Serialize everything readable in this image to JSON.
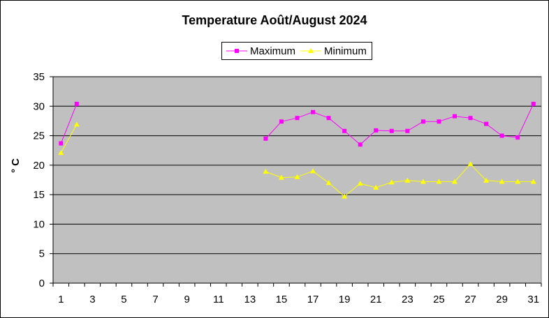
{
  "chart_data": {
    "type": "line",
    "title": "Temperature Août/August 2024",
    "xlabel": "",
    "ylabel": "° C",
    "x": [
      1,
      2,
      3,
      4,
      5,
      6,
      7,
      8,
      9,
      10,
      11,
      12,
      13,
      14,
      15,
      16,
      17,
      18,
      19,
      20,
      21,
      22,
      23,
      24,
      25,
      26,
      27,
      28,
      29,
      30,
      31
    ],
    "x_tick_labels": [
      "1",
      "3",
      "5",
      "7",
      "9",
      "11",
      "13",
      "15",
      "17",
      "19",
      "21",
      "23",
      "25",
      "27",
      "29",
      "31"
    ],
    "ylim": [
      0,
      35
    ],
    "y_ticks": [
      0,
      5,
      10,
      15,
      20,
      25,
      30,
      35
    ],
    "grid": "horizontal",
    "legend": "top-center",
    "plot_background": "#c0c0c0",
    "series": [
      {
        "name": "Maximum",
        "color": "#ff00ff",
        "marker": "square",
        "values": [
          23.7,
          30.4,
          null,
          null,
          null,
          null,
          null,
          null,
          null,
          null,
          null,
          null,
          null,
          24.5,
          27.4,
          28.0,
          29.0,
          28.0,
          25.8,
          23.5,
          25.9,
          25.8,
          25.8,
          27.4,
          27.4,
          28.3,
          28.0,
          27.0,
          25.0,
          24.7,
          30.4
        ]
      },
      {
        "name": "Minimum",
        "color": "#ffff00",
        "marker": "triangle",
        "values": [
          22.1,
          26.9,
          null,
          null,
          null,
          null,
          null,
          null,
          null,
          null,
          null,
          null,
          null,
          18.9,
          17.9,
          18.0,
          19.0,
          17.0,
          14.7,
          16.9,
          16.2,
          17.1,
          17.4,
          17.2,
          17.2,
          17.2,
          20.2,
          17.4,
          17.2,
          17.2,
          17.2
        ]
      }
    ]
  }
}
